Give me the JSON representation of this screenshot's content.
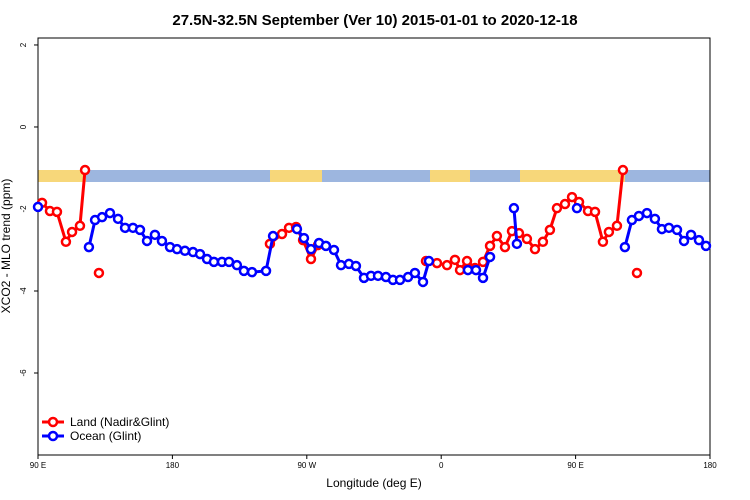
{
  "chart_data": {
    "type": "line",
    "title": "27.5N-32.5N September (Ver 10)   2015-01-01 to 2020-12-18",
    "x_label": "Longitude (deg E)",
    "y_label": "XCO2 - MLO trend (ppm)",
    "xlim": [
      90,
      540
    ],
    "ylim": [
      -8,
      2.17
    ],
    "xticks": [
      {
        "value": 90,
        "label": "90 E"
      },
      180,
      {
        "value": 270,
        "label": "90 W"
      },
      {
        "value": 360,
        "label": "0"
      },
      {
        "value": 450,
        "label": "90 E"
      },
      {
        "value": 540,
        "label": "180"
      }
    ],
    "yticks": [
      -6,
      -4,
      -2,
      0,
      2
    ],
    "legend": "bottom-left",
    "series": [
      {
        "name": "Land (Nadir&Glint)",
        "color": "#ff0000",
        "x": [
          92.7,
          98,
          102.7,
          108.7,
          112.8,
          118.1,
          121.5,
          null,
          130.8,
          null,
          245.3,
          253.4,
          258.1,
          262.8,
          267.5,
          272.8,
          277.5,
          null,
          349.8,
          357.2,
          363.9,
          369.2,
          372.6,
          377.3,
          382.6,
          388,
          392.7,
          397.3,
          402.7,
          407.4,
          412.1,
          417.4,
          422.8,
          428.1,
          432.8,
          437.5,
          442.9,
          447.6,
          452.3,
          458.3,
          463,
          468.3,
          472.3,
          477.7,
          481.7,
          null,
          491.1
        ],
        "values": [
          -1.85,
          -2.05,
          -2.07,
          -2.8,
          -2.56,
          -2.41,
          -1.05,
          null,
          -3.56,
          null,
          -2.85,
          -2.61,
          -2.46,
          -2.44,
          -2.76,
          -3.22,
          -2.88,
          null,
          -3.27,
          -3.32,
          -3.37,
          -3.24,
          -3.49,
          -3.27,
          -3.44,
          -3.29,
          -2.9,
          -2.66,
          -2.93,
          -2.54,
          -2.59,
          -2.73,
          -2.98,
          -2.8,
          -2.51,
          -1.98,
          -1.88,
          -1.71,
          -1.83,
          -2.05,
          -2.07,
          -2.8,
          -2.56,
          -2.41,
          -1.05,
          null,
          -3.56
        ]
      },
      {
        "name": "Ocean (Glint)",
        "color": "#0000ff",
        "x": [
          90,
          null,
          124.1,
          128.2,
          132.9,
          138.2,
          143.6,
          148.3,
          153.6,
          158.3,
          163,
          168.3,
          173,
          178.4,
          183.1,
          188.4,
          193.8,
          198.5,
          203.2,
          207.8,
          213.2,
          217.9,
          223.2,
          227.9,
          233.3,
          242.7,
          247.4,
          null,
          263.4,
          268.1,
          272.8,
          278.2,
          282.8,
          288.2,
          292.9,
          298.2,
          302.9,
          308.3,
          313,
          317.7,
          323,
          327.7,
          332.4,
          337.8,
          342.4,
          347.8,
          351.8,
          null,
          377.9,
          383.3,
          388,
          392.7,
          null,
          408.7,
          410.7,
          null,
          450.9,
          null,
          483,
          487.7,
          492.4,
          497.8,
          503.1,
          507.8,
          512.5,
          517.9,
          522.6,
          527.3,
          532.6,
          537.3
        ],
        "values": [
          -1.95,
          null,
          -2.93,
          -2.27,
          -2.2,
          -2.1,
          -2.24,
          -2.46,
          -2.46,
          -2.51,
          -2.78,
          -2.63,
          -2.78,
          -2.93,
          -2.98,
          -3.02,
          -3.05,
          -3.1,
          -3.22,
          -3.29,
          -3.29,
          -3.29,
          -3.37,
          -3.51,
          -3.54,
          -3.51,
          -2.66,
          null,
          -2.49,
          -2.71,
          -2.98,
          -2.83,
          -2.9,
          -3,
          -3.37,
          -3.34,
          -3.39,
          -3.68,
          -3.63,
          -3.63,
          -3.66,
          -3.73,
          -3.73,
          -3.66,
          -3.56,
          -3.78,
          -3.27,
          null,
          -3.49,
          -3.49,
          -3.68,
          -3.17,
          null,
          -1.98,
          -2.85,
          null,
          -1.98,
          null,
          -2.93,
          -2.27,
          -2.17,
          -2.1,
          -2.24,
          -2.49,
          -2.46,
          -2.51,
          -2.78,
          -2.63,
          -2.76,
          -2.9
        ]
      }
    ]
  }
}
